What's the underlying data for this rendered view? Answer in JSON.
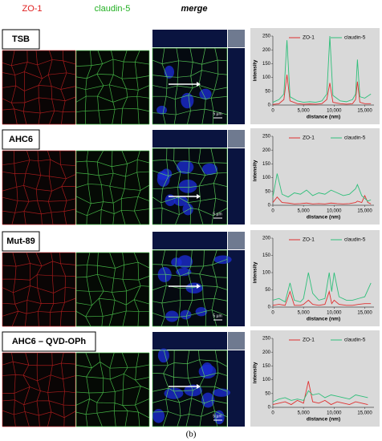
{
  "column_headers": [
    "ZO-1",
    "claudin-5",
    "merge"
  ],
  "rows": [
    {
      "label": "TSB",
      "scale_bar": "5 µm"
    },
    {
      "label": "AHC6",
      "scale_bar": "5 µm"
    },
    {
      "label": "Mut-89",
      "scale_bar": "5 µm"
    },
    {
      "label": "AHC6 – QVD-OPh",
      "scale_bar": "5 µm"
    }
  ],
  "chart_data": [
    {
      "type": "line",
      "x_label": "distance (nm)",
      "y_label": "intensity",
      "x": [
        0,
        1000,
        1800,
        2300,
        2800,
        4000,
        5000,
        6000,
        7000,
        8000,
        8800,
        9300,
        9800,
        11000,
        12000,
        13000,
        13500,
        13800,
        14200,
        15000,
        16000
      ],
      "series": [
        {
          "name": "ZO-1",
          "color": "#e03030",
          "values": [
            2,
            5,
            20,
            110,
            15,
            5,
            3,
            4,
            3,
            5,
            20,
            80,
            10,
            5,
            3,
            5,
            20,
            85,
            10,
            5,
            5
          ]
        },
        {
          "name": "claudin-5",
          "color": "#2fbf7a",
          "values": [
            10,
            20,
            40,
            235,
            30,
            15,
            10,
            12,
            10,
            15,
            40,
            250,
            35,
            15,
            12,
            20,
            40,
            165,
            30,
            25,
            40
          ]
        }
      ],
      "xlim": [
        0,
        16500
      ],
      "xticks": [
        0,
        {
          "value": 5000,
          "label": "5,000"
        },
        {
          "value": 10000,
          "label": "10,000"
        },
        {
          "value": 15000,
          "label": "15,000"
        }
      ],
      "ylim": [
        0,
        250
      ],
      "yticks": [
        0,
        50,
        100,
        150,
        200,
        250
      ]
    },
    {
      "type": "line",
      "x_label": "distance (nm)",
      "y_label": "intensity",
      "x": [
        0,
        700,
        1500,
        2500,
        3500,
        4500,
        5500,
        6500,
        7500,
        8500,
        9500,
        10500,
        11500,
        12500,
        13500,
        13800,
        14500,
        15000,
        15500,
        16000
      ],
      "series": [
        {
          "name": "ZO-1",
          "color": "#e03030",
          "values": [
            10,
            30,
            10,
            8,
            5,
            6,
            8,
            5,
            6,
            5,
            8,
            6,
            5,
            6,
            10,
            15,
            10,
            35,
            10,
            5
          ]
        },
        {
          "name": "claudin-5",
          "color": "#2fbf7a",
          "values": [
            30,
            115,
            40,
            30,
            45,
            40,
            55,
            35,
            45,
            40,
            55,
            45,
            35,
            40,
            60,
            75,
            35,
            25,
            15,
            20
          ]
        }
      ],
      "xlim": [
        0,
        16500
      ],
      "xticks": [
        0,
        {
          "value": 5000,
          "label": "5,000"
        },
        {
          "value": 10000,
          "label": "10,000"
        },
        {
          "value": 15000,
          "label": "15,000"
        }
      ],
      "ylim": [
        0,
        250
      ],
      "yticks": [
        0,
        50,
        100,
        150,
        200,
        250
      ]
    },
    {
      "type": "line",
      "x_label": "distance (nm)",
      "y_label": "intensity",
      "x": [
        0,
        1000,
        2000,
        2800,
        3500,
        4500,
        5000,
        5800,
        6500,
        7500,
        8500,
        9200,
        9600,
        10000,
        10800,
        12000,
        13000,
        14000,
        15000,
        16000
      ],
      "series": [
        {
          "name": "ZO-1",
          "color": "#e03030",
          "values": [
            5,
            8,
            5,
            45,
            5,
            5,
            8,
            20,
            8,
            5,
            8,
            45,
            10,
            20,
            8,
            5,
            5,
            8,
            10,
            10
          ]
        },
        {
          "name": "claudin-5",
          "color": "#2fbf7a",
          "values": [
            20,
            25,
            15,
            70,
            20,
            15,
            25,
            100,
            40,
            20,
            25,
            100,
            45,
            100,
            30,
            20,
            20,
            25,
            30,
            70
          ]
        }
      ],
      "xlim": [
        0,
        16500
      ],
      "xticks": [
        0,
        {
          "value": 5000,
          "label": "5,000"
        },
        {
          "value": 10000,
          "label": "10,000"
        },
        {
          "value": 15000,
          "label": "15,000"
        }
      ],
      "ylim": [
        0,
        200
      ],
      "yticks": [
        0,
        50,
        100,
        150,
        200
      ]
    },
    {
      "type": "line",
      "x_label": "distance (nm)",
      "y_label": "intensity",
      "x": [
        0,
        1000,
        2000,
        3000,
        4000,
        5000,
        5800,
        6500,
        7500,
        8500,
        9500,
        10500,
        11500,
        12500,
        13500,
        14500,
        15500
      ],
      "series": [
        {
          "name": "ZO-1",
          "color": "#e03030",
          "values": [
            10,
            15,
            20,
            10,
            25,
            15,
            95,
            20,
            15,
            25,
            10,
            20,
            15,
            10,
            20,
            15,
            10
          ]
        },
        {
          "name": "claudin-5",
          "color": "#2fbf7a",
          "values": [
            20,
            30,
            35,
            25,
            30,
            25,
            60,
            45,
            50,
            35,
            45,
            40,
            35,
            30,
            45,
            40,
            35
          ]
        }
      ],
      "xlim": [
        0,
        16500
      ],
      "xticks": [
        0,
        {
          "value": 5000,
          "label": "5,000"
        },
        {
          "value": 10000,
          "label": "10,000"
        },
        {
          "value": 15000,
          "label": "15,000"
        }
      ],
      "ylim": [
        0,
        250
      ],
      "yticks": [
        0,
        50,
        100,
        150,
        200,
        250
      ]
    }
  ],
  "caption": "(b)"
}
